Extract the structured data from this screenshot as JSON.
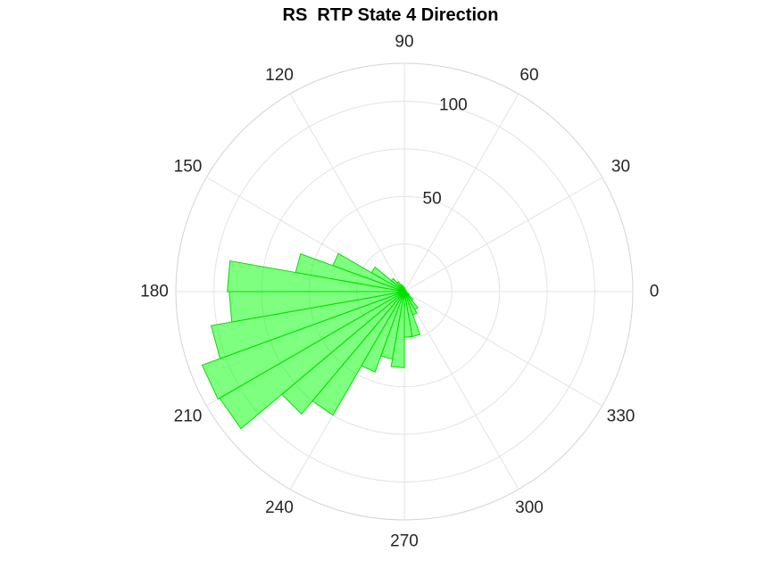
{
  "chart_data": {
    "type": "polar-histogram",
    "title": "RS  RTP State 4 Direction",
    "theta_unit": "degrees",
    "theta_ticks": [
      0,
      30,
      60,
      90,
      120,
      150,
      180,
      210,
      240,
      270,
      300,
      330
    ],
    "theta_tick_labels": [
      "0",
      "30",
      "60",
      "90",
      "120",
      "150",
      "180",
      "210",
      "240",
      "270",
      "300",
      "330"
    ],
    "r_ticks": [
      50,
      100
    ],
    "r_tick_labels": [
      "50",
      "100"
    ],
    "rlim": [
      0,
      120
    ],
    "grid": true,
    "bin_width_deg": 10,
    "bins": [
      {
        "start": 0,
        "end": 10,
        "count": 1
      },
      {
        "start": 10,
        "end": 20,
        "count": 1
      },
      {
        "start": 20,
        "end": 30,
        "count": 1
      },
      {
        "start": 30,
        "end": 40,
        "count": 1
      },
      {
        "start": 40,
        "end": 50,
        "count": 1
      },
      {
        "start": 50,
        "end": 60,
        "count": 1
      },
      {
        "start": 60,
        "end": 70,
        "count": 1
      },
      {
        "start": 70,
        "end": 80,
        "count": 1
      },
      {
        "start": 80,
        "end": 90,
        "count": 2
      },
      {
        "start": 90,
        "end": 100,
        "count": 2
      },
      {
        "start": 100,
        "end": 110,
        "count": 3
      },
      {
        "start": 110,
        "end": 120,
        "count": 4
      },
      {
        "start": 120,
        "end": 130,
        "count": 6
      },
      {
        "start": 130,
        "end": 140,
        "count": 9
      },
      {
        "start": 140,
        "end": 150,
        "count": 20
      },
      {
        "start": 150,
        "end": 160,
        "count": 40
      },
      {
        "start": 160,
        "end": 170,
        "count": 58
      },
      {
        "start": 170,
        "end": 180,
        "count": 93
      },
      {
        "start": 180,
        "end": 190,
        "count": 92
      },
      {
        "start": 190,
        "end": 200,
        "count": 103
      },
      {
        "start": 200,
        "end": 210,
        "count": 113
      },
      {
        "start": 210,
        "end": 220,
        "count": 112
      },
      {
        "start": 220,
        "end": 230,
        "count": 84
      },
      {
        "start": 230,
        "end": 240,
        "count": 75
      },
      {
        "start": 240,
        "end": 250,
        "count": 45
      },
      {
        "start": 250,
        "end": 260,
        "count": 36
      },
      {
        "start": 260,
        "end": 270,
        "count": 40
      },
      {
        "start": 270,
        "end": 280,
        "count": 24
      },
      {
        "start": 280,
        "end": 290,
        "count": 24
      },
      {
        "start": 290,
        "end": 300,
        "count": 13
      },
      {
        "start": 300,
        "end": 310,
        "count": 11
      },
      {
        "start": 310,
        "end": 320,
        "count": 6
      },
      {
        "start": 320,
        "end": 330,
        "count": 3
      },
      {
        "start": 330,
        "end": 340,
        "count": 2
      },
      {
        "start": 340,
        "end": 350,
        "count": 1
      },
      {
        "start": 350,
        "end": 360,
        "count": 1
      }
    ],
    "colors": {
      "fill": "#00ff00",
      "edge": "#00e000",
      "grid": "#e3e3e3",
      "text": "#262626",
      "title": "#000000"
    }
  }
}
